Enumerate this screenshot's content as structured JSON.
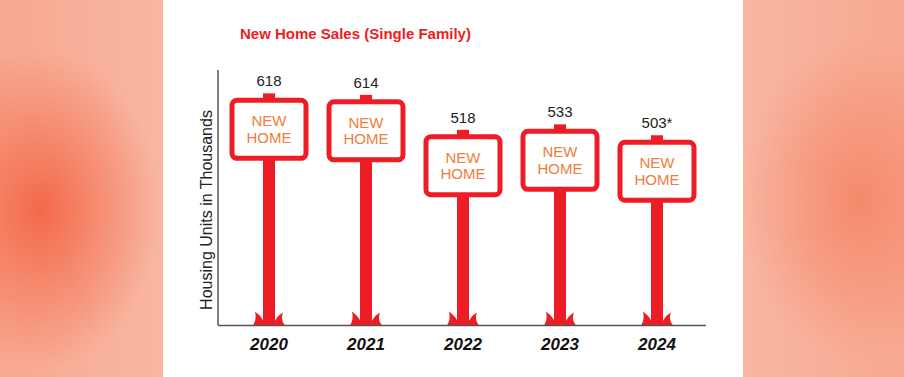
{
  "chart_data": {
    "type": "bar",
    "title": "New Home Sales (Single Family)",
    "y_label": "Housing Units in Thousands",
    "categories": [
      "2020",
      "2021",
      "2022",
      "2023",
      "2024"
    ],
    "values": [
      618,
      614,
      518,
      533,
      503
    ],
    "value_labels": [
      "618",
      "614",
      "518",
      "533",
      "503*"
    ],
    "annotation": "NEW HOME",
    "color": "#ee1c25",
    "ylim": [
      0,
      700
    ],
    "yticks": [],
    "tick_labels": "x",
    "data_labels": true,
    "grid": false
  }
}
